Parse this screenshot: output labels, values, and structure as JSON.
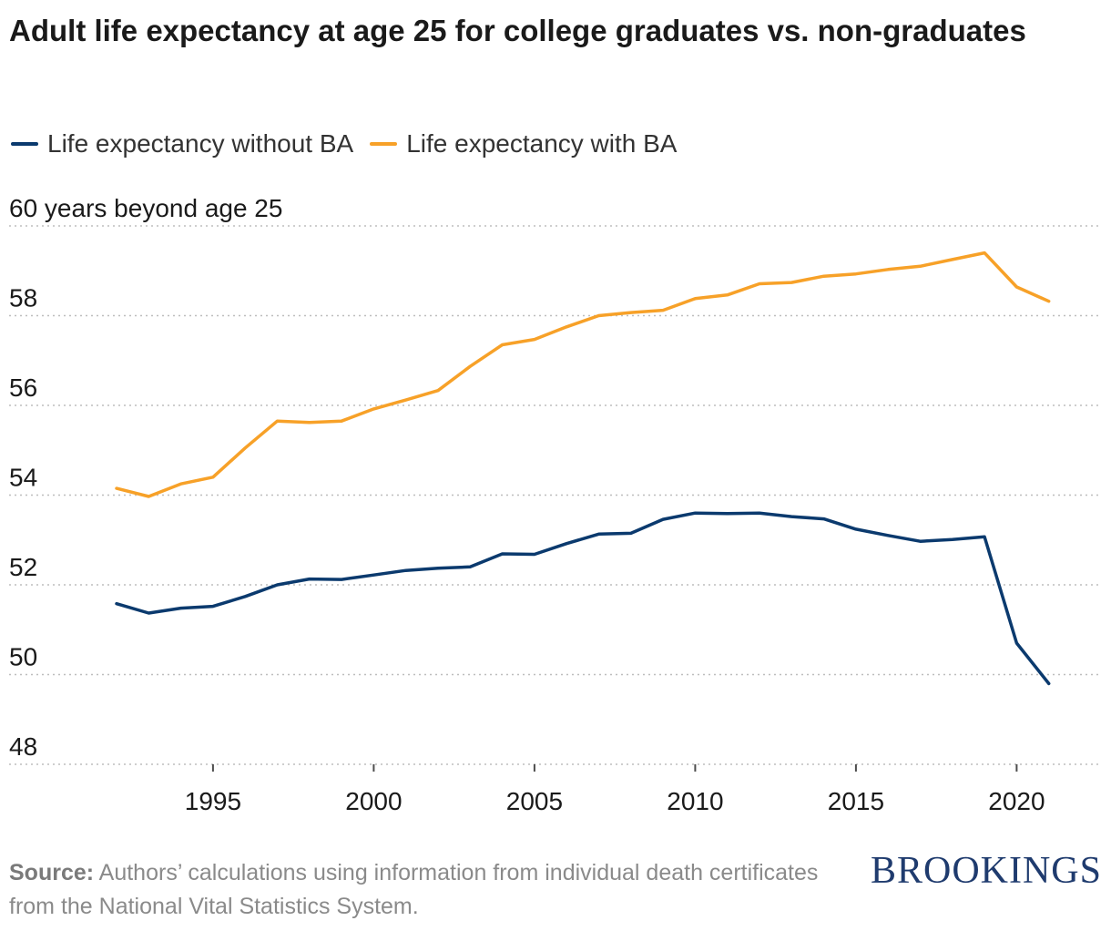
{
  "title": "Adult life expectancy at age 25 for college graduates vs. non-graduates",
  "legend": [
    {
      "label": "Life expectancy without BA",
      "color": "#0b3a6e"
    },
    {
      "label": "Life expectancy with BA",
      "color": "#f7a128"
    }
  ],
  "source_label": "Source:",
  "source_text": " Authors’ calculations using information from individual death certificates from the National Vital Statistics System.",
  "brand": "BROOKINGS",
  "chart_data": {
    "type": "line",
    "title": "Adult life expectancy at age 25 for college graduates vs. non-graduates",
    "ylabel": "60 years beyond age 25",
    "xlabel": "",
    "ylim": [
      48,
      60
    ],
    "xlim": [
      1991,
      2023
    ],
    "yticks": [
      48,
      50,
      52,
      54,
      56,
      58,
      60
    ],
    "ytick_labels": [
      "48",
      "50",
      "52",
      "54",
      "56",
      "58",
      "60 years beyond age 25"
    ],
    "xticks": [
      1995,
      2000,
      2005,
      2010,
      2015,
      2020
    ],
    "xtick_labels": [
      "1995",
      "2000",
      "2005",
      "2010",
      "2015",
      "2020"
    ],
    "grid": true,
    "legend_position": "top-left",
    "x": [
      1992,
      1993,
      1994,
      1995,
      1996,
      1997,
      1998,
      1999,
      2000,
      2001,
      2002,
      2003,
      2004,
      2005,
      2006,
      2007,
      2008,
      2009,
      2010,
      2011,
      2012,
      2013,
      2014,
      2015,
      2016,
      2017,
      2018,
      2019,
      2020,
      2021
    ],
    "series": [
      {
        "name": "Life expectancy without BA",
        "color": "#0b3a6e",
        "values": [
          51.58,
          51.37,
          51.48,
          51.52,
          51.74,
          52.0,
          52.13,
          52.12,
          52.22,
          52.32,
          52.37,
          52.4,
          52.69,
          52.68,
          52.92,
          53.13,
          53.15,
          53.46,
          53.6,
          53.59,
          53.6,
          53.52,
          53.47,
          53.24,
          53.1,
          52.97,
          53.01,
          53.07,
          50.7,
          49.8
        ]
      },
      {
        "name": "Life expectancy with BA",
        "color": "#f7a128",
        "values": [
          54.15,
          53.97,
          54.25,
          54.4,
          55.05,
          55.65,
          55.62,
          55.65,
          55.92,
          56.12,
          56.33,
          56.87,
          57.35,
          57.47,
          57.75,
          58.0,
          58.07,
          58.12,
          58.38,
          58.46,
          58.71,
          58.74,
          58.88,
          58.93,
          59.03,
          59.1,
          59.25,
          59.4,
          58.64,
          58.32
        ]
      }
    ]
  }
}
